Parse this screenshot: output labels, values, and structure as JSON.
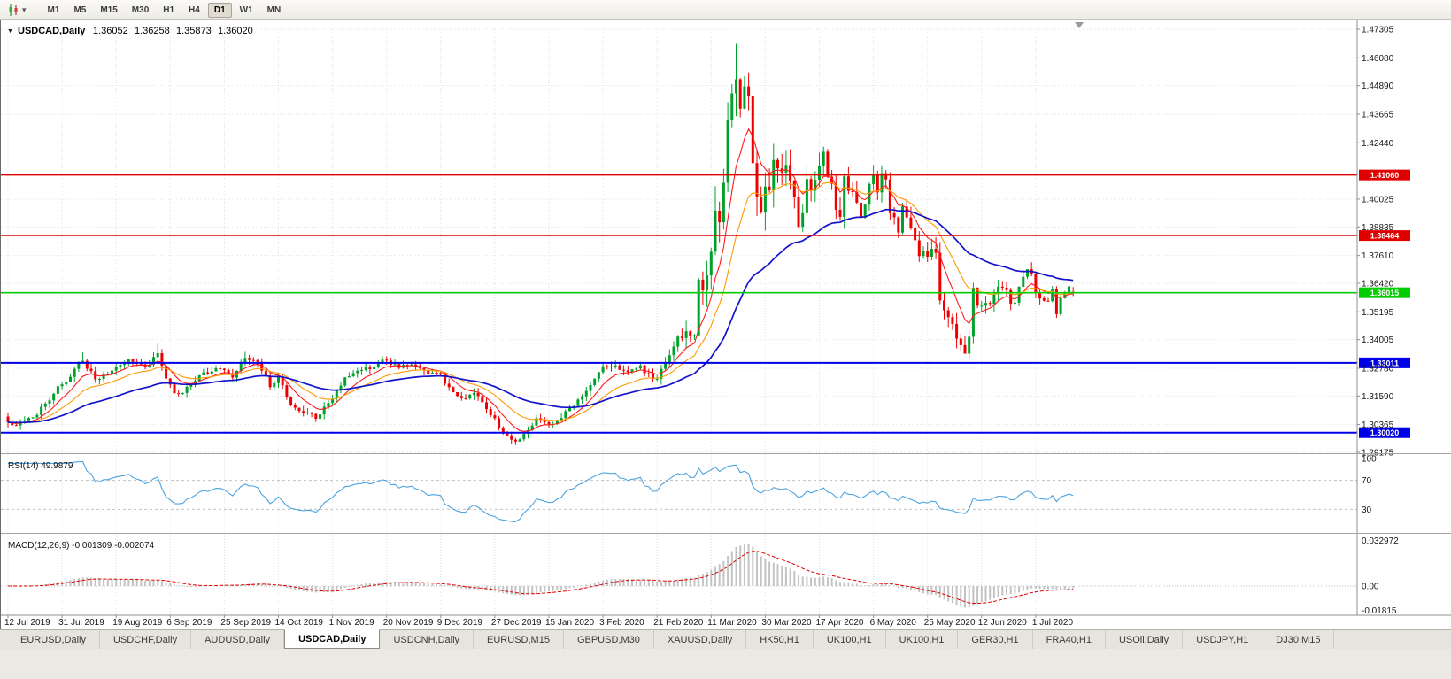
{
  "icons": {
    "dropdown_caret": "▾",
    "symbol_marker": "▼"
  },
  "toolbar": {
    "timeframes": [
      "M1",
      "M5",
      "M15",
      "M30",
      "H1",
      "H4",
      "D1",
      "W1",
      "MN"
    ],
    "active_timeframe": "D1"
  },
  "chart": {
    "symbol": "USDCAD,Daily",
    "open": "1.36052",
    "high": "1.36258",
    "low": "1.35873",
    "close": "1.36020"
  },
  "indicators": {
    "rsi": {
      "label": "RSI(14) 49.9879",
      "axis_labels": [
        "100",
        "70",
        "30"
      ],
      "levels": [
        70,
        30
      ]
    },
    "macd": {
      "label": "MACD(12,26,9) -0.001309 -0.002074",
      "axis_top": "0.032972",
      "axis_zero": "0.00",
      "axis_bottom": "-0.01815",
      "max": 0.032972,
      "min": -0.01815
    }
  },
  "chart_data": {
    "type": "candlestick",
    "symbol": "USDCAD",
    "timeframe": "Daily",
    "ylim": [
      1.29175,
      1.47305
    ],
    "price_ticks": [
      1.47305,
      1.4608,
      1.4489,
      1.43665,
      1.4244,
      1.40025,
      1.38835,
      1.3761,
      1.3642,
      1.35195,
      1.34005,
      1.3278,
      1.3159,
      1.30365,
      1.29175
    ],
    "date_labels": [
      "12 Jul 2019",
      "31 Jul 2019",
      "19 Aug 2019",
      "6 Sep 2019",
      "25 Sep 2019",
      "14 Oct 2019",
      "1 Nov 2019",
      "20 Nov 2019",
      "9 Dec 2019",
      "27 Dec 2019",
      "15 Jan 2020",
      "3 Feb 2020",
      "21 Feb 2020",
      "11 Mar 2020",
      "30 Mar 2020",
      "17 Apr 2020",
      "6 May 2020",
      "25 May 2020",
      "12 Jun 2020",
      "1 Jul 2020"
    ],
    "candles_per_tick": 13,
    "candle_count": 257,
    "hlines": [
      {
        "price": 1.4106,
        "label": "1.41060",
        "color": "#e00000",
        "width": 1.4
      },
      {
        "price": 1.38464,
        "label": "1.38464",
        "color": "#e00000",
        "width": 1.4
      },
      {
        "price": 1.36015,
        "label": "1.36015",
        "color": "#00cc00",
        "width": 1.6
      },
      {
        "price": 1.33011,
        "label": "1.33011",
        "color": "#0000e8",
        "width": 2
      },
      {
        "price": 1.3002,
        "label": "1.30020",
        "color": "#0000e8",
        "width": 2
      }
    ],
    "moving_averages": [
      {
        "name": "ma-fast-red",
        "period": 8,
        "color": "#ff1a1a",
        "width": 1.1
      },
      {
        "name": "ma-medium-orange",
        "period": 18,
        "color": "#ff9900",
        "width": 1.1
      },
      {
        "name": "ma-slow-blue",
        "period": 45,
        "color": "#1313cc",
        "width": 1.7
      }
    ],
    "colors": {
      "up": "#00a12b",
      "down": "#ef0000",
      "grid": "#e2e2e2",
      "rsi_line": "#4da3e0",
      "macd_hist": "#c3c3c3",
      "macd_signal": "#e00000"
    },
    "close_anchors": [
      [
        0,
        1.304
      ],
      [
        2,
        1.3022
      ],
      [
        5,
        1.3055
      ],
      [
        9,
        1.313
      ],
      [
        13,
        1.3215
      ],
      [
        16,
        1.3275
      ],
      [
        18,
        1.332
      ],
      [
        21,
        1.323
      ],
      [
        24,
        1.3262
      ],
      [
        27,
        1.329
      ],
      [
        30,
        1.3312
      ],
      [
        33,
        1.3282
      ],
      [
        36,
        1.3338
      ],
      [
        38,
        1.3235
      ],
      [
        40,
        1.317
      ],
      [
        43,
        1.3195
      ],
      [
        46,
        1.3248
      ],
      [
        49,
        1.3262
      ],
      [
        52,
        1.3268
      ],
      [
        54,
        1.3238
      ],
      [
        57,
        1.3332
      ],
      [
        60,
        1.3295
      ],
      [
        63,
        1.3205
      ],
      [
        65,
        1.3232
      ],
      [
        68,
        1.3128
      ],
      [
        71,
        1.3098
      ],
      [
        74,
        1.3062
      ],
      [
        78,
        1.3162
      ],
      [
        81,
        1.3232
      ],
      [
        85,
        1.3255
      ],
      [
        88,
        1.3282
      ],
      [
        91,
        1.3308
      ],
      [
        94,
        1.3288
      ],
      [
        97,
        1.3302
      ],
      [
        100,
        1.3282
      ],
      [
        104,
        1.3242
      ],
      [
        107,
        1.3168
      ],
      [
        110,
        1.3142
      ],
      [
        112,
        1.3172
      ],
      [
        115,
        1.3108
      ],
      [
        117,
        1.3068
      ],
      [
        119,
        1.2998
      ],
      [
        121,
        1.2958
      ],
      [
        124,
        1.2992
      ],
      [
        127,
        1.3052
      ],
      [
        130,
        1.3042
      ],
      [
        133,
        1.3072
      ],
      [
        136,
        1.3112
      ],
      [
        139,
        1.3182
      ],
      [
        141,
        1.3242
      ],
      [
        143,
        1.3292
      ],
      [
        146,
        1.3282
      ],
      [
        149,
        1.3252
      ],
      [
        152,
        1.3272
      ],
      [
        154,
        1.3242
      ],
      [
        156,
        1.3228
      ],
      [
        159,
        1.3312
      ],
      [
        161,
        1.3382
      ],
      [
        163,
        1.3422
      ],
      [
        165,
        1.3398
      ],
      [
        166,
        1.3682
      ],
      [
        167,
        1.3652
      ],
      [
        169,
        1.3752
      ],
      [
        170,
        1.3952
      ],
      [
        171,
        1.3862
      ],
      [
        172,
        1.4012
      ],
      [
        173,
        1.4282
      ],
      [
        174,
        1.4462
      ],
      [
        175,
        1.4562
      ],
      [
        176,
        1.4352
      ],
      [
        177,
        1.4482
      ],
      [
        178,
        1.4442
      ],
      [
        179,
        1.4182
      ],
      [
        180,
        1.4052
      ],
      [
        181,
        1.3992
      ],
      [
        182,
        1.4072
      ],
      [
        183,
        1.4062
      ],
      [
        184,
        1.4212
      ],
      [
        185,
        1.4132
      ],
      [
        186,
        1.4092
      ],
      [
        187,
        1.4162
      ],
      [
        188,
        1.4082
      ],
      [
        189,
        1.3992
      ],
      [
        190,
        1.3892
      ],
      [
        191,
        1.3932
      ],
      [
        192,
        1.4092
      ],
      [
        193,
        1.4042
      ],
      [
        194,
        1.4102
      ],
      [
        195,
        1.4132
      ],
      [
        196,
        1.4222
      ],
      [
        197,
        1.4102
      ],
      [
        198,
        1.4082
      ],
      [
        199,
        1.3962
      ],
      [
        200,
        1.3942
      ],
      [
        201,
        1.4092
      ],
      [
        202,
        1.4062
      ],
      [
        203,
        1.4032
      ],
      [
        204,
        1.3982
      ],
      [
        205,
        1.3932
      ],
      [
        206,
        1.3982
      ],
      [
        207,
        1.4052
      ],
      [
        208,
        1.4112
      ],
      [
        209,
        1.4032
      ],
      [
        210,
        1.4102
      ],
      [
        211,
        1.4062
      ],
      [
        212,
        1.3952
      ],
      [
        213,
        1.3912
      ],
      [
        214,
        1.3872
      ],
      [
        215,
        1.3992
      ],
      [
        217,
        1.3902
      ],
      [
        219,
        1.3782
      ],
      [
        221,
        1.3772
      ],
      [
        223,
        1.3782
      ],
      [
        224,
        1.3572
      ],
      [
        225,
        1.3522
      ],
      [
        226,
        1.3502
      ],
      [
        227,
        1.3492
      ],
      [
        228,
        1.3422
      ],
      [
        229,
        1.3392
      ],
      [
        230,
        1.3362
      ],
      [
        231,
        1.3412
      ],
      [
        232,
        1.3622
      ],
      [
        233,
        1.3542
      ],
      [
        234,
        1.3532
      ],
      [
        236,
        1.3552
      ],
      [
        238,
        1.3612
      ],
      [
        240,
        1.3602
      ],
      [
        241,
        1.3548
      ],
      [
        242,
        1.3562
      ],
      [
        243,
        1.3642
      ],
      [
        244,
        1.3662
      ],
      [
        245,
        1.3688
      ],
      [
        246,
        1.3678
      ],
      [
        247,
        1.3582
      ],
      [
        248,
        1.3572
      ],
      [
        249,
        1.3552
      ],
      [
        250,
        1.3548
      ],
      [
        251,
        1.3612
      ],
      [
        252,
        1.3512
      ],
      [
        253,
        1.3578
      ],
      [
        254,
        1.3592
      ],
      [
        255,
        1.3618
      ],
      [
        256,
        1.3602
      ]
    ],
    "vol_anchors": [
      [
        0,
        0.0045
      ],
      [
        150,
        0.0045
      ],
      [
        160,
        0.007
      ],
      [
        166,
        0.016
      ],
      [
        170,
        0.022
      ],
      [
        176,
        0.024
      ],
      [
        182,
        0.016
      ],
      [
        190,
        0.013
      ],
      [
        200,
        0.011
      ],
      [
        212,
        0.009
      ],
      [
        222,
        0.01
      ],
      [
        228,
        0.01
      ],
      [
        233,
        0.008
      ],
      [
        240,
        0.0065
      ],
      [
        256,
        0.0055
      ]
    ],
    "extremes": [
      {
        "i": 18,
        "high": 1.3346
      },
      {
        "i": 36,
        "high": 1.3383
      },
      {
        "i": 57,
        "high": 1.3348
      },
      {
        "i": 121,
        "low": 1.2952
      },
      {
        "i": 175,
        "high": 1.4668
      },
      {
        "i": 231,
        "low": 1.3317
      },
      {
        "i": 256,
        "open": 1.36052,
        "high": 1.36258,
        "low": 1.35873,
        "close": 1.3602
      }
    ]
  },
  "tabs": [
    "EURUSD,Daily",
    "USDCHF,Daily",
    "AUDUSD,Daily",
    "USDCAD,Daily",
    "USDCNH,Daily",
    "EURUSD,M15",
    "GBPUSD,M30",
    "XAUUSD,Daily",
    "HK50,H1",
    "UK100,H1",
    "UK100,H1",
    "GER30,H1",
    "FRA40,H1",
    "USOil,Daily",
    "USDJPY,H1",
    "DJ30,M15"
  ],
  "active_tab_index": 3
}
